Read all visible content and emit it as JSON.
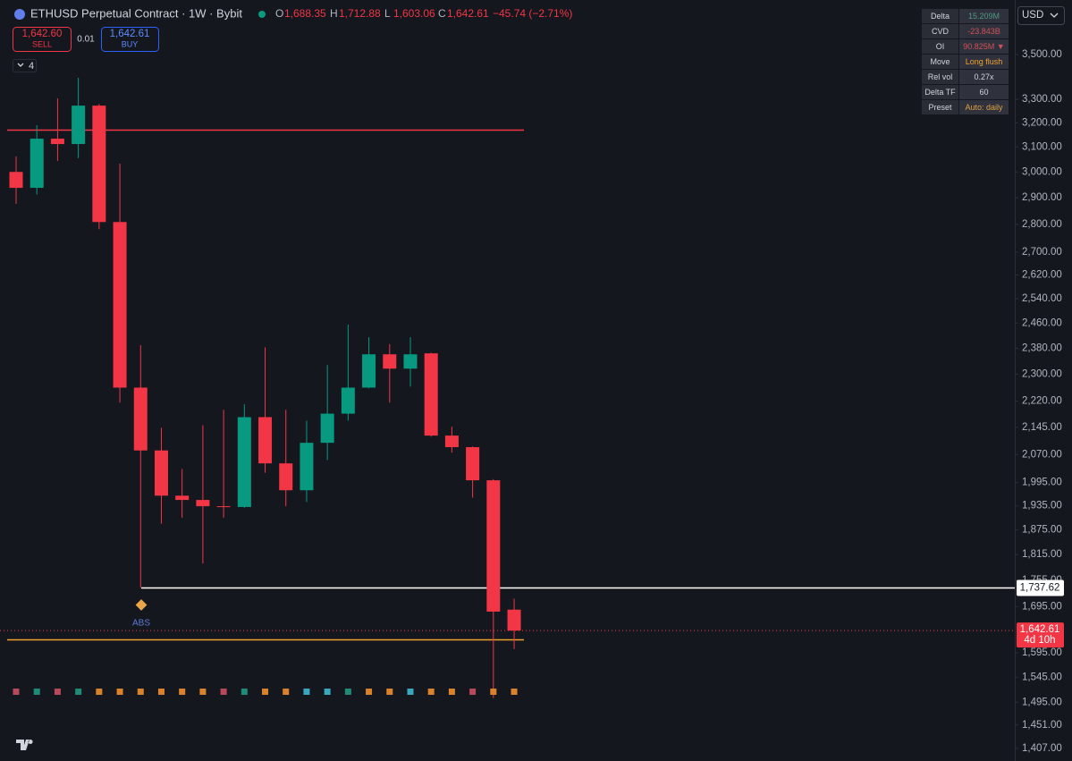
{
  "chart_data": {
    "type": "candlestick",
    "header": {
      "symbol": "ETHUSD Perpetual Contract · 1W · Bybit",
      "o": "O",
      "open": "1,688.35",
      "h": "H",
      "high": "1,712.88",
      "l": "L",
      "low": "1,603.06",
      "c": "C",
      "close": "1,642.61",
      "change": "−45.74 (−2.71%)"
    },
    "trade": {
      "sell_price": "1,642.60",
      "sell": "SELL",
      "spread": "0.01",
      "buy_price": "1,642.61",
      "buy": "BUY"
    },
    "indicators_count": "4",
    "currency": "USD",
    "categories": [
      null,
      null,
      null,
      null,
      null,
      null,
      null,
      null,
      null,
      null,
      null,
      null,
      null,
      null,
      null,
      null,
      null,
      null,
      null,
      null,
      null,
      null,
      null,
      null,
      null
    ],
    "open": [
      3000,
      2938,
      3134,
      3112,
      3273,
      2809,
      2260,
      2081,
      1961,
      1950,
      1934,
      1932,
      2174,
      2046,
      1975,
      2102,
      2184,
      2260,
      2361,
      2317,
      2364,
      2122,
      2090,
      2001,
      1688.35
    ],
    "high": [
      3062,
      3190,
      3304,
      3395,
      3280,
      3033,
      2390,
      2144,
      2031,
      2151,
      2195,
      2211,
      2383,
      2195,
      2164,
      2328,
      2455,
      2415,
      2393,
      2415,
      2366,
      2147,
      2092,
      2004,
      1712.88
    ],
    "low": [
      2877,
      2912,
      3044,
      3055,
      2783,
      2216,
      1737.62,
      1890,
      1905,
      1794,
      1905,
      1930,
      2021,
      1934,
      1945,
      2055,
      2164,
      2258,
      2216,
      2263,
      2119,
      2075,
      1956,
      1503,
      1603.06
    ],
    "close": [
      2938,
      3134,
      3112,
      3273,
      2809,
      2260,
      2081,
      1961,
      1950,
      1934,
      1932,
      2174,
      2046,
      1975,
      2102,
      2184,
      2260,
      2361,
      2317,
      2361,
      2122,
      2090,
      2001,
      1684,
      1642.61
    ],
    "up_color": "#089981",
    "down_color": "#f23645",
    "marker_colors": [
      "#b8485a",
      "#1f8a78",
      "#b8485a",
      "#1f8a78",
      "#d9822b",
      "#d9822b",
      "#d9822b",
      "#d9822b",
      "#d9822b",
      "#d9822b",
      "#b8485a",
      "#1f8a78",
      "#d9822b",
      "#d9822b",
      "#3aa6c0",
      "#3aa6c0",
      "#1f8a78",
      "#d9822b",
      "#d9822b",
      "#3aa6c0",
      "#d9822b",
      "#d9822b",
      "#b8485a",
      "#d9822b",
      "#d9822b"
    ],
    "log_scale": true,
    "ylim": [
      1384,
      3760
    ],
    "yticks": [
      {
        "value": 3500,
        "label": "3,500.00"
      },
      {
        "value": 3300,
        "label": "3,300.00"
      },
      {
        "value": 3200,
        "label": "3,200.00"
      },
      {
        "value": 3100,
        "label": "3,100.00"
      },
      {
        "value": 3000,
        "label": "3,000.00"
      },
      {
        "value": 2900,
        "label": "2,900.00"
      },
      {
        "value": 2800,
        "label": "2,800.00"
      },
      {
        "value": 2700,
        "label": "2,700.00"
      },
      {
        "value": 2620,
        "label": "2,620.00"
      },
      {
        "value": 2540,
        "label": "2,540.00"
      },
      {
        "value": 2460,
        "label": "2,460.00"
      },
      {
        "value": 2380,
        "label": "2,380.00"
      },
      {
        "value": 2300,
        "label": "2,300.00"
      },
      {
        "value": 2220,
        "label": "2,220.00"
      },
      {
        "value": 2145,
        "label": "2,145.00"
      },
      {
        "value": 2070,
        "label": "2,070.00"
      },
      {
        "value": 1995,
        "label": "1,995.00"
      },
      {
        "value": 1935,
        "label": "1,935.00"
      },
      {
        "value": 1875,
        "label": "1,875.00"
      },
      {
        "value": 1815,
        "label": "1,815.00"
      },
      {
        "value": 1755,
        "label": "1,755.00"
      },
      {
        "value": 1695,
        "label": "1,695.00"
      },
      {
        "value": 1595,
        "label": "1,595.00"
      },
      {
        "value": 1545,
        "label": "1,545.00"
      },
      {
        "value": 1495,
        "label": "1,495.00"
      },
      {
        "value": 1451,
        "label": "1,451.00"
      },
      {
        "value": 1407,
        "label": "1,407.00"
      }
    ],
    "levels": [
      {
        "value": 3171,
        "color": "#f23645"
      },
      {
        "value": 1624,
        "color": "#f0a030"
      },
      {
        "value": 1737.62,
        "label": "1,737.62",
        "color": "#ffffff"
      }
    ],
    "price_tag": {
      "value": 1642.61,
      "label": "1,642.61",
      "countdown": "4d 10h",
      "color": "#f23645"
    },
    "annotation": "ABS",
    "table": {
      "rows": [
        [
          "Delta",
          "15.209M"
        ],
        [
          "CVD",
          "-23.843B"
        ],
        [
          "OI",
          "90.825M ▼"
        ],
        [
          "Move",
          "Long flush"
        ],
        [
          "Rel vol",
          "0.27x"
        ],
        [
          "Delta TF",
          "60"
        ],
        [
          "Preset",
          "Auto: daily"
        ]
      ],
      "value_colors": [
        "#4f9a88",
        "#d0505a",
        "#d0505a",
        "#f0a030",
        "#d1d4dc",
        "#d1d4dc",
        "#e0a040"
      ]
    }
  }
}
